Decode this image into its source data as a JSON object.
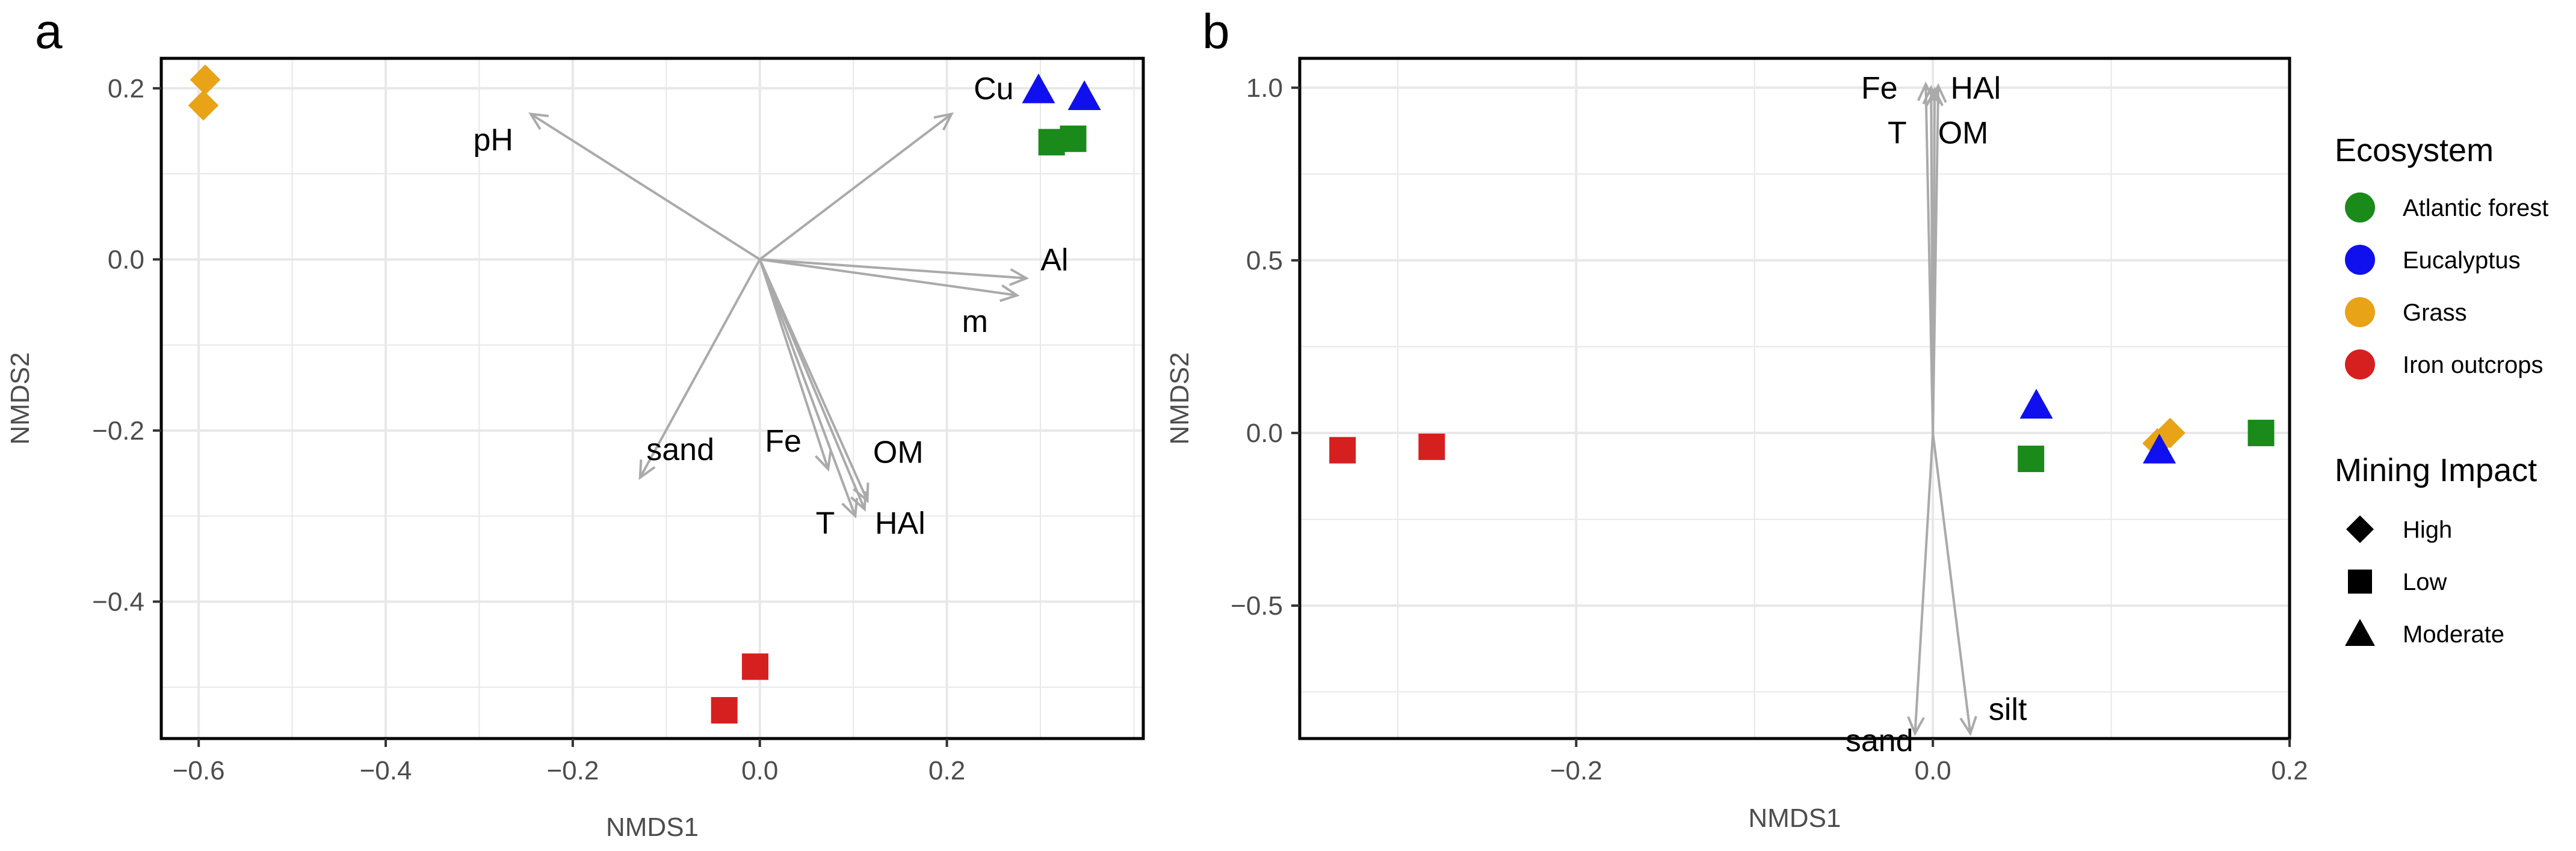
{
  "colors": {
    "Atlantic forest": "#1a8a1a",
    "Eucalyptus": "#1010ee",
    "Grass": "#e8a317",
    "Iron outcrops": "#d62020",
    "vector": "#aaaaaa",
    "grid": "#e8e8e8"
  },
  "legend": {
    "ecosystem_title": "Ecosystem",
    "ecosystem_items": [
      "Atlantic forest",
      "Eucalyptus",
      "Grass",
      "Iron outcrops"
    ],
    "impact_title": "Mining Impact",
    "impact_items": [
      {
        "label": "High",
        "shape": "diamond"
      },
      {
        "label": "Low",
        "shape": "square"
      },
      {
        "label": "Moderate",
        "shape": "triangle"
      }
    ]
  },
  "chart_data": [
    {
      "panel": "a",
      "type": "scatter",
      "xlabel": "NMDS1",
      "ylabel": "NMDS2",
      "xlim": [
        -0.64,
        0.41
      ],
      "ylim": [
        -0.56,
        0.235
      ],
      "xticks": [
        -0.6,
        -0.4,
        -0.2,
        0.0,
        0.2
      ],
      "xticklabels": [
        "−0.6",
        "−0.4",
        "−0.2",
        "0.0",
        "0.2"
      ],
      "yticks": [
        -0.4,
        -0.2,
        0.0,
        0.2
      ],
      "yticklabels": [
        "−0.4",
        "−0.2",
        "0.0",
        "0.2"
      ],
      "points": [
        {
          "x": -0.593,
          "y": 0.21,
          "ecosystem": "Grass",
          "impact": "High"
        },
        {
          "x": -0.595,
          "y": 0.18,
          "ecosystem": "Grass",
          "impact": "High"
        },
        {
          "x": 0.298,
          "y": 0.198,
          "ecosystem": "Eucalyptus",
          "impact": "Moderate"
        },
        {
          "x": 0.347,
          "y": 0.19,
          "ecosystem": "Eucalyptus",
          "impact": "Moderate"
        },
        {
          "x": 0.312,
          "y": 0.137,
          "ecosystem": "Atlantic forest",
          "impact": "Low"
        },
        {
          "x": 0.335,
          "y": 0.141,
          "ecosystem": "Atlantic forest",
          "impact": "Low"
        },
        {
          "x": -0.005,
          "y": -0.476,
          "ecosystem": "Iron outcrops",
          "impact": "Low"
        },
        {
          "x": -0.038,
          "y": -0.527,
          "ecosystem": "Iron outcrops",
          "impact": "Low"
        }
      ],
      "vectors": [
        {
          "label": "pH",
          "x": -0.245,
          "y": 0.17,
          "lx": -0.285,
          "ly": 0.14
        },
        {
          "label": "Cu",
          "x": 0.205,
          "y": 0.17,
          "lx": 0.25,
          "ly": 0.2
        },
        {
          "label": "Al",
          "x": 0.285,
          "y": -0.022,
          "lx": 0.315,
          "ly": 0.0
        },
        {
          "label": "m",
          "x": 0.275,
          "y": -0.042,
          "lx": 0.23,
          "ly": -0.072
        },
        {
          "label": "sand",
          "x": -0.128,
          "y": -0.255,
          "lx": -0.085,
          "ly": -0.222
        },
        {
          "label": "Fe",
          "x": 0.073,
          "y": -0.245,
          "lx": 0.025,
          "ly": -0.212
        },
        {
          "label": "OM",
          "x": 0.115,
          "y": -0.282,
          "lx": 0.148,
          "ly": -0.225
        },
        {
          "label": "T",
          "x": 0.102,
          "y": -0.3,
          "lx": 0.07,
          "ly": -0.308
        },
        {
          "label": "HAl",
          "x": 0.112,
          "y": -0.292,
          "lx": 0.15,
          "ly": -0.308
        }
      ]
    },
    {
      "panel": "b",
      "type": "scatter",
      "xlabel": "NMDS1",
      "ylabel": "NMDS2",
      "xlim": [
        -0.355,
        0.2
      ],
      "ylim": [
        -0.885,
        1.085
      ],
      "xticks": [
        -0.2,
        0.0,
        0.2
      ],
      "xticklabels": [
        "−0.2",
        "0.0",
        "0.2"
      ],
      "yticks": [
        -0.5,
        0.0,
        0.5,
        1.0
      ],
      "yticklabels": [
        "−0.5",
        "0.0",
        "0.5",
        "1.0"
      ],
      "points": [
        {
          "x": -0.331,
          "y": -0.05,
          "ecosystem": "Iron outcrops",
          "impact": "Low"
        },
        {
          "x": -0.281,
          "y": -0.04,
          "ecosystem": "Iron outcrops",
          "impact": "Low"
        },
        {
          "x": 0.058,
          "y": 0.08,
          "ecosystem": "Eucalyptus",
          "impact": "Moderate"
        },
        {
          "x": 0.055,
          "y": -0.075,
          "ecosystem": "Atlantic forest",
          "impact": "Low"
        },
        {
          "x": 0.126,
          "y": -0.03,
          "ecosystem": "Grass",
          "impact": "High"
        },
        {
          "x": 0.133,
          "y": 0.0,
          "ecosystem": "Grass",
          "impact": "High"
        },
        {
          "x": 0.127,
          "y": -0.05,
          "ecosystem": "Eucalyptus",
          "impact": "Moderate"
        },
        {
          "x": 0.184,
          "y": 0.0,
          "ecosystem": "Atlantic forest",
          "impact": "Low"
        }
      ],
      "vectors": [
        {
          "label": "Fe",
          "x": -0.004,
          "y": 1.01,
          "lx": -0.03,
          "ly": 1.0
        },
        {
          "label": "HAl",
          "x": 0.003,
          "y": 1.005,
          "lx": 0.024,
          "ly": 1.0
        },
        {
          "label": "T",
          "x": -0.001,
          "y": 1.0,
          "lx": -0.02,
          "ly": 0.87
        },
        {
          "label": "OM",
          "x": 0.001,
          "y": 0.995,
          "lx": 0.017,
          "ly": 0.87
        },
        {
          "label": "sand",
          "x": -0.01,
          "y": -0.87,
          "lx": -0.03,
          "ly": -0.89
        },
        {
          "label": "silt",
          "x": 0.021,
          "y": -0.87,
          "lx": 0.042,
          "ly": -0.8
        }
      ]
    }
  ]
}
